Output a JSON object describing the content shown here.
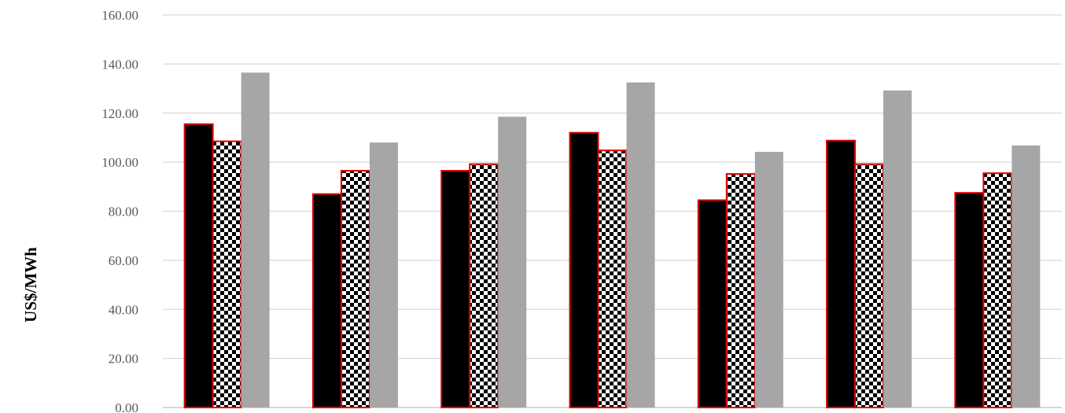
{
  "chart_data": {
    "type": "bar",
    "title": "",
    "xlabel": "",
    "ylabel": "US$/MWh",
    "ylim": [
      0,
      160
    ],
    "y_ticks": [
      "0.00",
      "20.00",
      "40.00",
      "60.00",
      "80.00",
      "100.00",
      "120.00",
      "140.00",
      "160.00"
    ],
    "grid": true,
    "legend": "none",
    "categories": [
      "",
      "",
      "",
      "",
      "",
      "",
      ""
    ],
    "series": [
      {
        "style": "solid-black",
        "fill": "#000000",
        "stroke": "#e00000",
        "values": [
          115.5,
          87.0,
          96.5,
          112.0,
          84.5,
          108.8,
          87.5
        ]
      },
      {
        "style": "checkered",
        "fill": "#000000",
        "stroke": "#e00000",
        "values": [
          108.5,
          96.5,
          99.2,
          104.8,
          95.2,
          99.2,
          95.5
        ]
      },
      {
        "style": "solid-gray",
        "fill": "#a6a6a6",
        "stroke": "none",
        "values": [
          136.5,
          108.0,
          118.5,
          132.5,
          104.2,
          129.2,
          106.8
        ]
      }
    ],
    "colors": {
      "gridline": "#d9d9d9",
      "tick_text": "#595959",
      "bar_outline": "#e00000"
    }
  }
}
